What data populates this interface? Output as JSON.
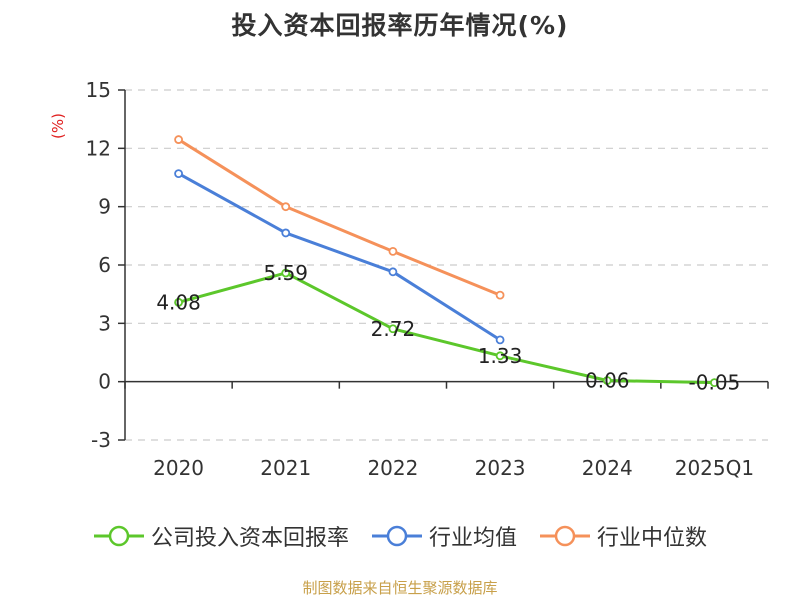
{
  "chart_data": {
    "type": "line",
    "title": "投入资本回报率历年情况(%)",
    "ylabel": "(%)",
    "xlabel": "",
    "categories": [
      "2020",
      "2021",
      "2022",
      "2023",
      "2024",
      "2025Q1"
    ],
    "ylim": [
      -3,
      15
    ],
    "yticks": [
      15,
      12,
      9,
      6,
      3,
      0,
      -3
    ],
    "grid": true,
    "legend_position": "bottom",
    "series": [
      {
        "name": "公司投入资本回报率",
        "color": "#5cc72b",
        "values": [
          4.08,
          5.59,
          2.72,
          1.33,
          0.06,
          -0.05
        ],
        "labels": [
          "4.08",
          "5.59",
          "2.72",
          "1.33",
          "0.06",
          "-0.05"
        ]
      },
      {
        "name": "行业均值",
        "color": "#4a7fd8",
        "values": [
          10.7,
          7.65,
          5.65,
          2.15,
          null,
          null
        ]
      },
      {
        "name": "行业中位数",
        "color": "#f5915a",
        "values": [
          12.45,
          9.0,
          6.7,
          4.45,
          null,
          null
        ]
      }
    ]
  },
  "source": {
    "text": "制图数据来自恒生聚源数据库",
    "color": "#c8a04a"
  },
  "colors": {
    "axis": "#333333",
    "grid": "#cccccc",
    "ylabel": "#e02020",
    "text": "#333333"
  }
}
